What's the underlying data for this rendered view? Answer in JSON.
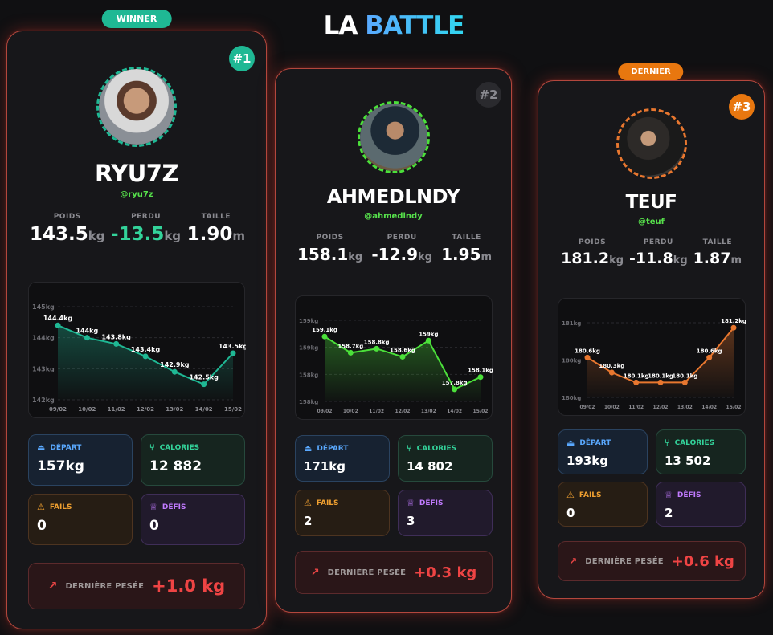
{
  "title": {
    "prefix": "LA",
    "accent": "BATTLE"
  },
  "stat_labels": {
    "poids": "POIDS",
    "perdu": "PERDU",
    "taille": "TAILLE"
  },
  "tile_labels": {
    "depart": "DÉPART",
    "calories": "CALORIES",
    "fails": "FAILS",
    "defis": "DÉFIS"
  },
  "last_weigh_label": "DERNIÈRE PESÉE",
  "colors": {
    "winner": "#1fb894",
    "last": "#e8770f",
    "neutral": "#2a2a2e",
    "danger": "#ef4444"
  },
  "icons": {
    "depart": "weight-icon",
    "calories": "utensils-icon",
    "fails": "warning-icon",
    "defis": "trophy-icon",
    "last": "trend-up-icon"
  },
  "players": [
    {
      "badge": "WINNER",
      "rank": "#1",
      "name": "RYU7Z",
      "handle": "@ryu7z",
      "poids": "143.5",
      "poids_unit": "kg",
      "perdu": "-13.5",
      "perdu_unit": "kg",
      "taille": "1.90",
      "taille_unit": "m",
      "depart": "157kg",
      "calories": "12 882",
      "fails": "0",
      "defis": "0",
      "last_weigh": "+1.0 kg",
      "color": "#1fb894",
      "chart_data": {
        "type": "line",
        "x": [
          "09/02",
          "10/02",
          "11/02",
          "12/02",
          "13/02",
          "14/02",
          "15/02"
        ],
        "values": [
          144.4,
          144.0,
          143.8,
          143.4,
          142.9,
          142.5,
          143.5
        ],
        "labels": [
          "144.4kg",
          "144kg",
          "143.8kg",
          "143.4kg",
          "142.9kg",
          "142.5kg",
          "143.5kg"
        ],
        "y_ticks": [
          "145kg",
          "144kg",
          "143kg",
          "142kg"
        ],
        "ylim": [
          142,
          145
        ]
      }
    },
    {
      "badge": "",
      "rank": "#2",
      "name": "AHMEDLNDY",
      "handle": "@ahmedlndy",
      "poids": "158.1",
      "poids_unit": "kg",
      "perdu": "-12.9",
      "perdu_unit": "kg",
      "taille": "1.95",
      "taille_unit": "m",
      "depart": "171kg",
      "calories": "14 802",
      "fails": "2",
      "defis": "3",
      "last_weigh": "+0.3 kg",
      "color": "#4be03a",
      "chart_data": {
        "type": "line",
        "x": [
          "09/02",
          "10/02",
          "11/02",
          "12/02",
          "13/02",
          "14/02",
          "15/02"
        ],
        "values": [
          159.1,
          158.7,
          158.8,
          158.6,
          159.0,
          157.8,
          158.1
        ],
        "labels": [
          "159.1kg",
          "158.7kg",
          "158.8kg",
          "158.6kg",
          "159kg",
          "157.8kg",
          "158.1kg"
        ],
        "y_ticks": [
          "159kg",
          "159kg",
          "158kg",
          "158kg"
        ],
        "ylim": [
          157.5,
          159.5
        ]
      }
    },
    {
      "badge": "DERNIER",
      "rank": "#3",
      "name": "TEUF",
      "handle": "@teuf",
      "poids": "181.2",
      "poids_unit": "kg",
      "perdu": "-11.8",
      "perdu_unit": "kg",
      "taille": "1.87",
      "taille_unit": "m",
      "depart": "193kg",
      "calories": "13 502",
      "fails": "0",
      "defis": "2",
      "last_weigh": "+0.6 kg",
      "color": "#e8772f",
      "chart_data": {
        "type": "line",
        "x": [
          "09/02",
          "10/02",
          "11/02",
          "12/02",
          "13/02",
          "14/02",
          "15/02"
        ],
        "values": [
          180.6,
          180.3,
          180.1,
          180.1,
          180.1,
          180.6,
          181.2
        ],
        "labels": [
          "180.6kg",
          "180.3kg",
          "180.1kg",
          "180.1kg",
          "180.1kg",
          "180.6kg",
          "181.2kg"
        ],
        "y_ticks": [
          "181kg",
          "180kg",
          "180kg"
        ],
        "ylim": [
          179.8,
          181.3
        ]
      }
    }
  ]
}
